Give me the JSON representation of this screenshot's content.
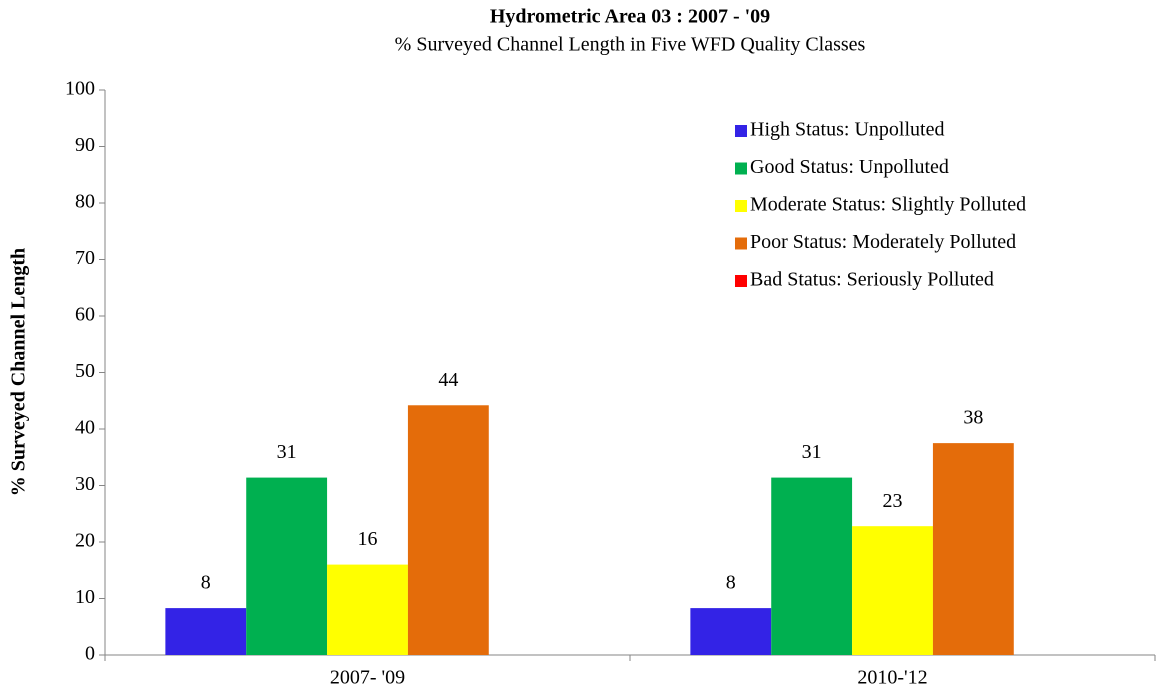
{
  "chart_data": {
    "type": "bar",
    "title": "Hydrometric Area 03 : 2007 - '09",
    "subtitle": "% Surveyed Channel Length in Five WFD Quality Classes",
    "y_label": "% Surveyed Channel Length",
    "categories": [
      "2007- '09",
      "2010-'12"
    ],
    "series": [
      {
        "name": "High Status: Unpolluted",
        "color": "#3323e6",
        "values": [
          8.3,
          8.3
        ],
        "value_labels": [
          "8",
          "8"
        ]
      },
      {
        "name": "Good Status: Unpolluted",
        "color": "#00b050",
        "values": [
          31.4,
          31.4
        ],
        "value_labels": [
          "31",
          "31"
        ]
      },
      {
        "name": "Moderate Status: Slightly Polluted",
        "color": "#ffff00",
        "values": [
          16.0,
          22.8
        ],
        "value_labels": [
          "16",
          "23"
        ]
      },
      {
        "name": "Poor Status: Moderately Polluted",
        "color": "#e46c0a",
        "values": [
          44.2,
          37.5
        ],
        "value_labels": [
          "44",
          "38"
        ]
      },
      {
        "name": "Bad Status: Seriously Polluted",
        "color": "#ff0000",
        "values": [
          0,
          0
        ]
      }
    ],
    "ylim": [
      0,
      100
    ],
    "yticks": [
      0,
      10,
      20,
      30,
      40,
      50,
      60,
      70,
      80,
      90,
      100
    ],
    "legend": "upper right",
    "grid": false
  }
}
